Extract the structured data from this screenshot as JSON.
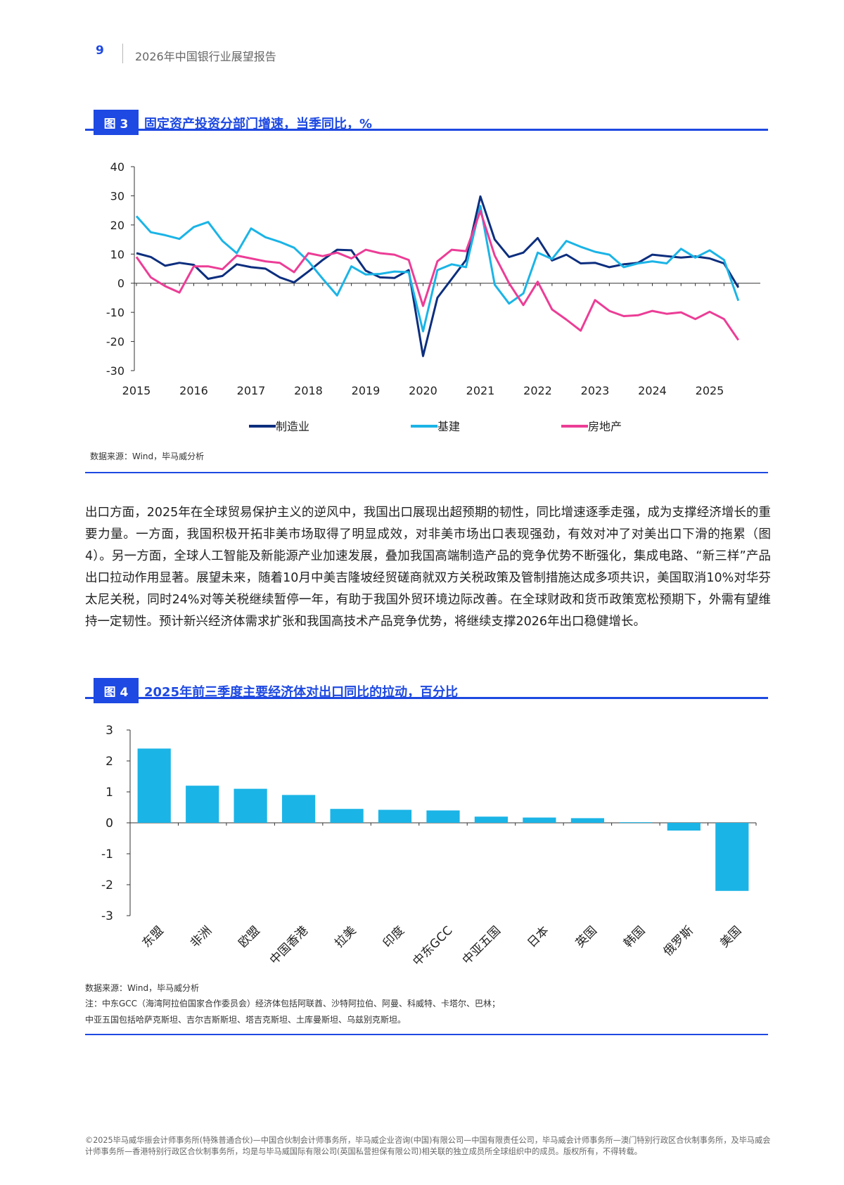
{
  "header": {
    "page_number": "9",
    "report_title": "2026年中国银行业展望报告"
  },
  "figure3": {
    "tag": "图 3",
    "title": "固定资产投资分部门增速，当季同比，%",
    "source": "数据来源：Wind，毕马威分析"
  },
  "figure4": {
    "tag": "图 4",
    "title": "2025年前三季度主要经济体对出口同比的拉动，百分比",
    "source": "数据来源：Wind，毕马威分析",
    "note1": "注：中东GCC（海湾阿拉伯国家合作委员会）经济体包括阿联酋、沙特阿拉伯、阿曼、科威特、卡塔尔、巴林；",
    "note2": "中亚五国包括哈萨克斯坦、吉尔吉斯斯坦、塔吉克斯坦、土库曼斯坦、乌兹别克斯坦。"
  },
  "body_paragraph": "出口方面，2025年在全球贸易保护主义的逆风中，我国出口展现出超预期的韧性，同比增速逐季走强，成为支撑经济增长的重要力量。一方面，我国积极开拓非美市场取得了明显成效，对非美市场出口表现强劲，有效对冲了对美出口下滑的拖累（图4）。另一方面，全球人工智能及新能源产业加速发展，叠加我国高端制造产品的竞争优势不断强化，集成电路、“新三样”产品出口拉动作用显著。展望未来，随着10月中美吉隆坡经贸磋商就双方关税政策及管制措施达成多项共识，美国取消10%对华芬太尼关税，同时24%对等关税继续暂停一年，有助于我国外贸环境边际改善。在全球财政和货币政策宽松预期下，外需有望维持一定韧性。预计新兴经济体需求扩张和我国高技术产品竞争优势，将继续支撑2026年出口稳健增长。",
  "footer": "©2025毕马威华振会计师事务所(特殊普通合伙)—中国合伙制会计师事务所，毕马威企业咨询(中国)有限公司—中国有限责任公司，毕马威会计师事务所—澳门特别行政区合伙制事务所，及毕马威会计师事务所—香港特别行政区合伙制事务所，均是与毕马威国际有限公司(英国私营担保有限公司)相关联的独立成员所全球组织中的成员。版权所有，不得转载。",
  "colors": {
    "accent": "#1e49e2",
    "manufacturing": "#0c2e7e",
    "infrastructure": "#1bb4e6",
    "real_estate": "#ec3d96",
    "bar": "#1bb4e6"
  },
  "chart_data": [
    {
      "type": "line",
      "x_start_year": 2015,
      "x_ticks": [
        "2015",
        "2016",
        "2017",
        "2018",
        "2019",
        "2020",
        "2021",
        "2022",
        "2023",
        "2024",
        "2025"
      ],
      "y_ticks": [
        "40",
        "30",
        "20",
        "10",
        "0",
        "-10",
        "-20",
        "-30"
      ],
      "ylim": [
        -30,
        40
      ],
      "legend_position": "bottom",
      "series": [
        {
          "name": "制造业",
          "color": "#0c2e7e",
          "values": [
            10.3,
            9,
            6,
            7,
            6.3,
            1.5,
            2.5,
            6.5,
            5.5,
            5,
            2,
            0.3,
            4,
            8,
            11.5,
            11.3,
            4.3,
            2,
            1.8,
            4.5,
            -25,
            -5,
            1.5,
            8,
            29.8,
            15,
            9,
            10.5,
            15.5,
            7.8,
            9.8,
            6.8,
            7,
            5.5,
            6.5,
            7,
            9.8,
            9.3,
            8.8,
            9.2,
            8.5,
            6.8,
            -1.5
          ]
        },
        {
          "name": "基建",
          "color": "#1bb4e6",
          "values": [
            23,
            17.5,
            16.5,
            15.2,
            19.3,
            21,
            14.5,
            10.3,
            18.8,
            15.8,
            14.2,
            12.2,
            7.5,
            1.5,
            -4.2,
            5.8,
            3,
            3.2,
            4,
            3.8,
            -16.5,
            4.5,
            6.5,
            5.5,
            26.5,
            -0.5,
            -7,
            -3.5,
            10.5,
            8.3,
            14.5,
            12.5,
            10.8,
            9.8,
            5.5,
            6.8,
            7.5,
            6.8,
            11.8,
            8.8,
            11.3,
            8,
            -6
          ]
        },
        {
          "name": "房地产",
          "color": "#ec3d96",
          "values": [
            9,
            2,
            -1,
            -3.2,
            5.8,
            5.8,
            4.8,
            9.5,
            8.5,
            7.5,
            7,
            3.8,
            10.3,
            9.3,
            10.5,
            8.5,
            11.5,
            10.3,
            9.8,
            8,
            -7.8,
            7.5,
            11.5,
            11,
            24.8,
            9.5,
            0,
            -7.5,
            0.5,
            -9,
            -12.5,
            -16.3,
            -5.8,
            -9.5,
            -11.3,
            -11,
            -9.5,
            -10.5,
            -10,
            -12.3,
            -9.8,
            -12.3,
            -19.5
          ]
        }
      ]
    },
    {
      "type": "bar",
      "categories": [
        "东盟",
        "非洲",
        "欧盟",
        "中国香港",
        "拉美",
        "印度",
        "中东GCC",
        "中亚五国",
        "日本",
        "英国",
        "韩国",
        "俄罗斯",
        "美国"
      ],
      "values": [
        2.4,
        1.2,
        1.1,
        0.9,
        0.45,
        0.42,
        0.4,
        0.2,
        0.17,
        0.15,
        0.02,
        -0.25,
        -2.2
      ],
      "y_ticks": [
        "3",
        "2",
        "1",
        "0",
        "-1",
        "-2",
        "-3"
      ],
      "ylim": [
        -3,
        3
      ]
    }
  ]
}
